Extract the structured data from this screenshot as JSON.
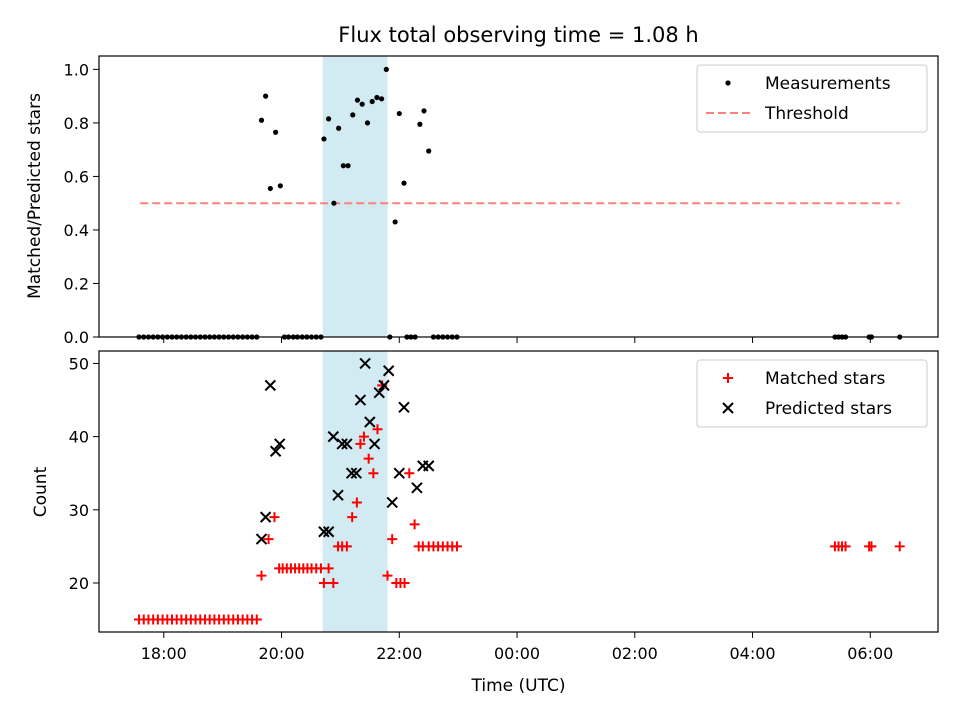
{
  "title": "Flux total observing time = 1.08 h",
  "colors": {
    "measurement": "#000000",
    "threshold": "#ff7f7f",
    "matched": "#ff0000",
    "predicted": "#000000",
    "span": "#add8e6"
  },
  "chart_data": [
    {
      "type": "scatter",
      "ylabel": "Matched/Predicted stars",
      "xlim": [
        16.9,
        31.15
      ],
      "ylim": [
        0,
        1.05
      ],
      "yticks": [
        0.0,
        0.2,
        0.4,
        0.6,
        0.8,
        1.0
      ],
      "ytick_labels": [
        "0.0",
        "0.2",
        "0.4",
        "0.6",
        "0.8",
        "1.0"
      ],
      "span": [
        20.7,
        21.8
      ],
      "legend_position": "top-right",
      "legend": [
        "Measurements",
        "Threshold"
      ],
      "threshold": {
        "name": "Threshold",
        "value": 0.5,
        "x_range": [
          17.6,
          30.5
        ]
      },
      "series": [
        {
          "name": "Measurements",
          "x": [
            17.58,
            17.66,
            17.74,
            17.82,
            17.9,
            17.98,
            18.06,
            18.14,
            18.22,
            18.3,
            18.38,
            18.46,
            18.54,
            18.62,
            18.7,
            18.78,
            18.86,
            18.94,
            19.02,
            19.1,
            19.18,
            19.26,
            19.34,
            19.42,
            19.5,
            19.58,
            19.66,
            19.73,
            19.81,
            19.9,
            19.98,
            20.05,
            20.12,
            20.2,
            20.27,
            20.35,
            20.43,
            20.51,
            20.59,
            20.67,
            20.72,
            20.8,
            20.89,
            20.97,
            21.05,
            21.13,
            21.21,
            21.29,
            21.37,
            21.46,
            21.54,
            21.62,
            21.7,
            21.78,
            21.84,
            21.93,
            22.0,
            22.08,
            22.13,
            22.2,
            22.27,
            22.35,
            22.42,
            22.5,
            22.58,
            22.66,
            22.74,
            22.82,
            22.9,
            22.98,
            29.4,
            29.46,
            29.52,
            29.58,
            29.98,
            30.02,
            30.5
          ],
          "y": [
            0,
            0,
            0,
            0,
            0,
            0,
            0,
            0,
            0,
            0,
            0,
            0,
            0,
            0,
            0,
            0,
            0,
            0,
            0,
            0,
            0,
            0,
            0,
            0,
            0,
            0,
            0.81,
            0.9,
            0.555,
            0.765,
            0.565,
            0,
            0,
            0,
            0,
            0,
            0,
            0,
            0,
            0,
            0.74,
            0.815,
            0.5,
            0.78,
            0.64,
            0.64,
            0.83,
            0.885,
            0.87,
            0.8,
            0.88,
            0.895,
            0.89,
            1.0,
            0,
            0.43,
            0.835,
            0.575,
            0,
            0,
            0,
            0.795,
            0.845,
            0.695,
            0,
            0,
            0,
            0,
            0,
            0,
            0,
            0,
            0,
            0,
            0,
            0,
            0
          ]
        }
      ]
    },
    {
      "type": "scatter",
      "xlabel": "Time (UTC)",
      "ylabel": "Count",
      "xlim": [
        16.9,
        31.15
      ],
      "ylim": [
        13.3,
        51.7
      ],
      "yticks": [
        20,
        30,
        40,
        50
      ],
      "ytick_labels": [
        "20",
        "30",
        "40",
        "50"
      ],
      "xticks": [
        18,
        20,
        22,
        24,
        26,
        28,
        30
      ],
      "xtick_labels": [
        "18:00",
        "20:00",
        "22:00",
        "00:00",
        "02:00",
        "04:00",
        "06:00"
      ],
      "span": [
        20.7,
        21.8
      ],
      "legend_position": "top-right",
      "legend": [
        "Matched stars",
        "Predicted stars"
      ],
      "series": [
        {
          "name": "Matched stars",
          "x": [
            17.58,
            17.66,
            17.74,
            17.82,
            17.9,
            17.98,
            18.06,
            18.14,
            18.22,
            18.3,
            18.38,
            18.46,
            18.54,
            18.62,
            18.7,
            18.78,
            18.86,
            18.94,
            19.02,
            19.1,
            19.18,
            19.26,
            19.34,
            19.42,
            19.5,
            19.58,
            19.66,
            19.78,
            19.88,
            19.96,
            20.02,
            20.09,
            20.16,
            20.23,
            20.3,
            20.37,
            20.44,
            20.51,
            20.59,
            20.67,
            20.72,
            20.8,
            20.88,
            20.96,
            21.03,
            21.11,
            21.2,
            21.28,
            21.34,
            21.4,
            21.48,
            21.56,
            21.63,
            21.71,
            21.8,
            21.88,
            21.95,
            22.02,
            22.09,
            22.17,
            22.26,
            22.33,
            22.4,
            22.5,
            22.58,
            22.66,
            22.74,
            22.82,
            22.9,
            22.98,
            29.4,
            29.46,
            29.52,
            29.58,
            29.98,
            30.02,
            30.5
          ],
          "y": [
            15,
            15,
            15,
            15,
            15,
            15,
            15,
            15,
            15,
            15,
            15,
            15,
            15,
            15,
            15,
            15,
            15,
            15,
            15,
            15,
            15,
            15,
            15,
            15,
            15,
            15,
            21,
            26,
            29,
            22,
            22,
            22,
            22,
            22,
            22,
            22,
            22,
            22,
            22,
            22,
            20,
            22,
            20,
            25,
            25,
            25,
            29,
            31,
            39,
            40,
            37,
            35,
            41,
            47,
            21,
            26,
            20,
            20,
            20,
            35,
            28,
            25,
            25,
            25,
            25,
            25,
            25,
            25,
            25,
            25,
            25,
            25,
            25,
            25,
            25,
            25,
            25
          ]
        },
        {
          "name": "Predicted stars",
          "x": [
            19.66,
            19.73,
            19.81,
            19.9,
            19.97,
            20.72,
            20.8,
            20.88,
            20.96,
            21.03,
            21.11,
            21.19,
            21.27,
            21.34,
            21.42,
            21.5,
            21.58,
            21.66,
            21.74,
            21.82,
            21.88,
            22.0,
            22.08,
            22.3,
            22.4,
            22.5
          ],
          "y": [
            26,
            29,
            47,
            38,
            39,
            27,
            27,
            40,
            32,
            39,
            39,
            35,
            35,
            45,
            50,
            42,
            39,
            46,
            47,
            49,
            31,
            35,
            44,
            33,
            36,
            36
          ]
        }
      ]
    }
  ]
}
